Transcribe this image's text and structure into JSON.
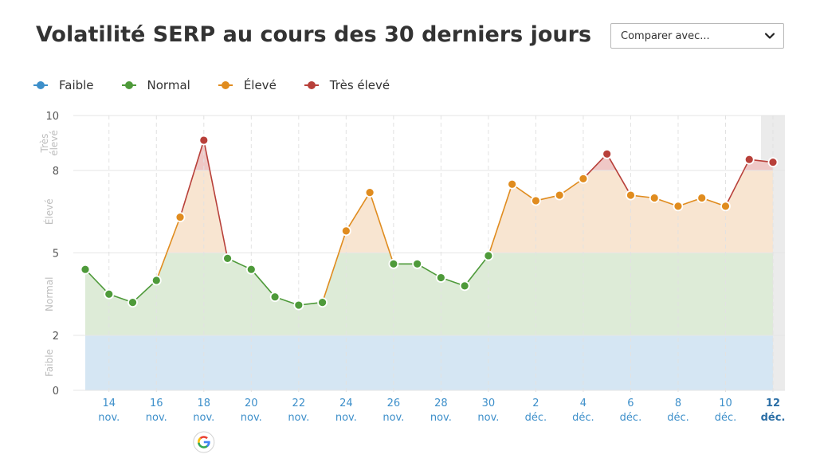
{
  "title": "Volatilité SERP au cours des 30 derniers jours",
  "compare": {
    "label": "Comparer avec..."
  },
  "legend": [
    {
      "label": "Faible",
      "color": "#3d8fca"
    },
    {
      "label": "Normal",
      "color": "#4e9a3a"
    },
    {
      "label": "Élevé",
      "color": "#e08c1f"
    },
    {
      "label": "Très élevé",
      "color": "#b8403a"
    }
  ],
  "colors": {
    "band_faible": "#d5e6f3",
    "band_normal": "#ddebd7",
    "band_eleve": "#f8e5d1",
    "band_tres_eleve": "#efc8c6",
    "grid": "#e6e6e6",
    "tick_label": "#3d8fca",
    "selection": "#e8e8e8"
  },
  "icons": {
    "marker": "google-icon",
    "dropdown": "chevron-down-icon"
  },
  "chart_data": {
    "type": "line",
    "title": "Volatilité SERP au cours des 30 derniers jours",
    "xlabel": "",
    "ylabel": "",
    "ylim": [
      0,
      10
    ],
    "yticks": [
      "0",
      "2",
      "5",
      "8",
      "10"
    ],
    "bands": [
      {
        "label": "Faible",
        "from": 0,
        "to": 2
      },
      {
        "label": "Normal",
        "from": 2,
        "to": 5
      },
      {
        "label": "Élevé",
        "from": 5,
        "to": 8
      },
      {
        "label": "Très élevé",
        "from": 8,
        "to": 10
      }
    ],
    "band_labels": [
      "Faible",
      "Normal",
      "Élevé",
      "Très élevé"
    ],
    "x": [
      "13 nov.",
      "14 nov.",
      "15 nov.",
      "16 nov.",
      "17 nov.",
      "18 nov.",
      "19 nov.",
      "20 nov.",
      "21 nov.",
      "22 nov.",
      "23 nov.",
      "24 nov.",
      "25 nov.",
      "26 nov.",
      "27 nov.",
      "28 nov.",
      "29 nov.",
      "30 nov.",
      "1 déc.",
      "2 déc.",
      "3 déc.",
      "4 déc.",
      "5 déc.",
      "6 déc.",
      "7 déc.",
      "8 déc.",
      "9 déc.",
      "10 déc.",
      "11 déc.",
      "12 déc."
    ],
    "series": [
      {
        "values": [
          4.4,
          3.5,
          3.2,
          4.0,
          6.3,
          9.1,
          4.8,
          4.4,
          3.4,
          3.1,
          3.2,
          5.8,
          7.2,
          4.6,
          4.6,
          4.1,
          3.8,
          4.9,
          7.5,
          6.9,
          7.1,
          7.7,
          8.6,
          7.1,
          7.0,
          6.7,
          7.0,
          6.7,
          8.4,
          8.3
        ]
      }
    ],
    "xtick_labels": [
      {
        "day": "14",
        "month": "nov."
      },
      {
        "day": "16",
        "month": "nov."
      },
      {
        "day": "18",
        "month": "nov."
      },
      {
        "day": "20",
        "month": "nov."
      },
      {
        "day": "22",
        "month": "nov."
      },
      {
        "day": "24",
        "month": "nov."
      },
      {
        "day": "26",
        "month": "nov."
      },
      {
        "day": "28",
        "month": "nov."
      },
      {
        "day": "30",
        "month": "nov."
      },
      {
        "day": "2",
        "month": "déc."
      },
      {
        "day": "4",
        "month": "déc."
      },
      {
        "day": "6",
        "month": "déc."
      },
      {
        "day": "8",
        "month": "déc."
      },
      {
        "day": "10",
        "month": "déc."
      },
      {
        "day": "12",
        "month": "déc."
      }
    ],
    "highlighted_date": "12 déc.",
    "annotation": {
      "date": "18 nov.",
      "icon": "google-icon"
    }
  }
}
